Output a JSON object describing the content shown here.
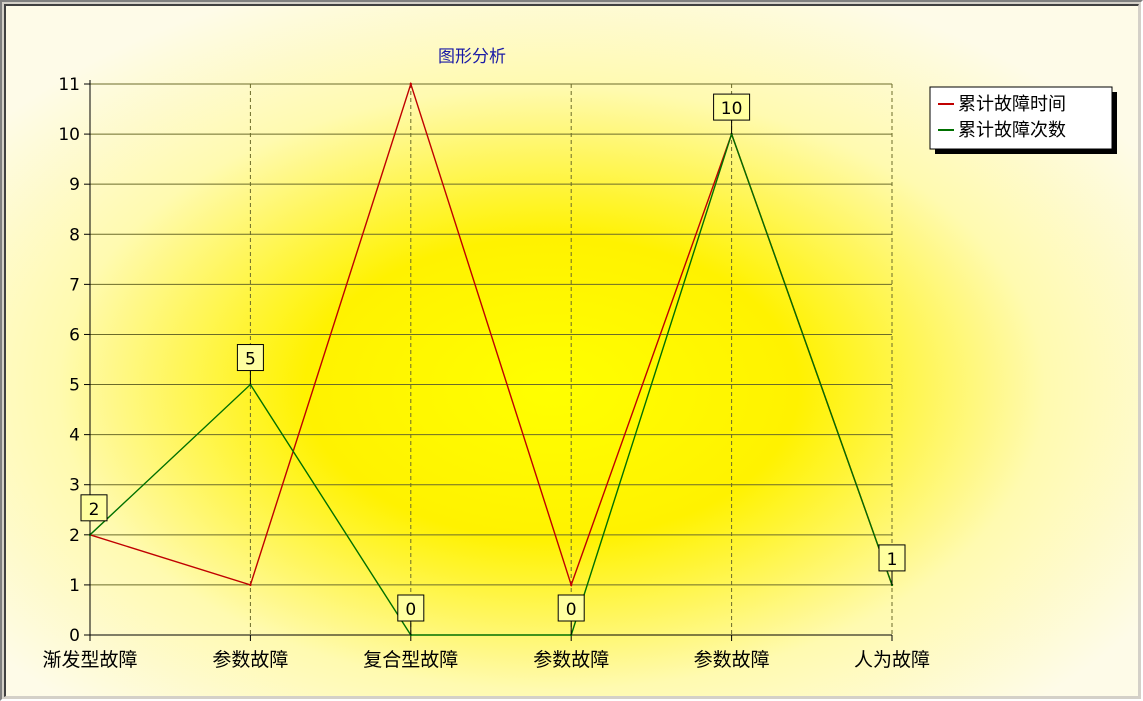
{
  "chart_data": {
    "type": "line",
    "title": "图形分析",
    "categories": [
      "渐发型故障",
      "参数故障",
      "复合型故障",
      "参数故障",
      "参数故障",
      "人为故障"
    ],
    "series": [
      {
        "name": "累计故障时间",
        "color": "#c00000",
        "values": [
          2,
          1,
          11,
          1,
          10,
          1
        ]
      },
      {
        "name": "累计故障次数",
        "color": "#007000",
        "values": [
          2,
          5,
          0,
          0,
          10,
          1
        ],
        "data_labels": [
          "2",
          "5",
          "0",
          "0",
          "10",
          "1"
        ]
      }
    ],
    "ylim": [
      0,
      11
    ],
    "yticks": [
      "0",
      "1",
      "2",
      "3",
      "4",
      "5",
      "6",
      "7",
      "8",
      "9",
      "10",
      "11"
    ],
    "grid": true,
    "legend_position": "top-right",
    "colors": {
      "background": "#fefbe8",
      "highlight": "#ffff00",
      "label_box": "#ffffa0"
    }
  }
}
